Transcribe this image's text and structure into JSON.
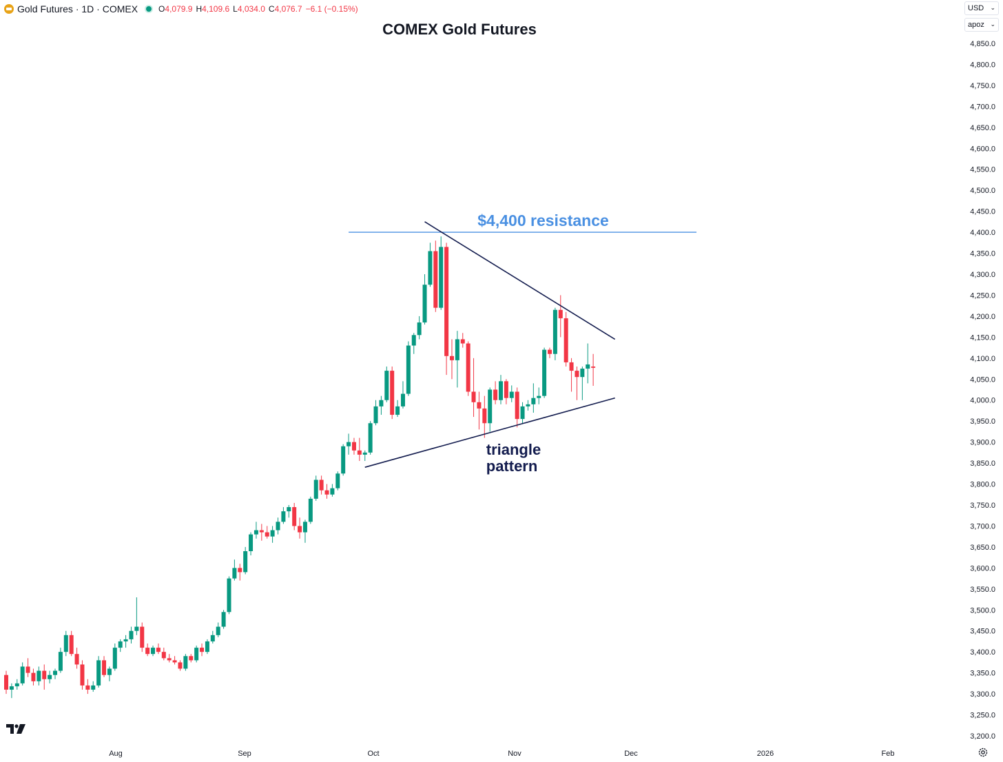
{
  "header": {
    "symbol_text": "Gold Futures · 1D · COMEX",
    "ohlc": [
      {
        "key": "O",
        "value": "4,079.9"
      },
      {
        "key": "H",
        "value": "4,109.6"
      },
      {
        "key": "L",
        "value": "4,034.0"
      },
      {
        "key": "C",
        "value": "4,076.7"
      }
    ],
    "change": "−6.1 (−0.15%)"
  },
  "controls": {
    "currency": "USD",
    "unit": "apoz"
  },
  "icons": {
    "symbol": "gold-bar-icon",
    "status": "market-dot-icon",
    "brand": "tradingview-logo-icon",
    "settings": "gear-icon"
  },
  "colors": {
    "up": "#089981",
    "down": "#f23645",
    "resistance": "#4a90e2",
    "triangle": "#131c4e"
  },
  "chart_data": {
    "type": "candlestick",
    "title": "COMEX Gold Futures",
    "xlabel": "",
    "ylabel": "",
    "ylim": [
      3200,
      4850
    ],
    "yticks": [
      "3,200.0",
      "3,250.0",
      "3,300.0",
      "3,350.0",
      "3,400.0",
      "3,450.0",
      "3,500.0",
      "3,550.0",
      "3,600.0",
      "3,650.0",
      "3,700.0",
      "3,750.0",
      "3,800.0",
      "3,850.0",
      "3,900.0",
      "3,950.0",
      "4,000.0",
      "4,050.0",
      "4,100.0",
      "4,150.0",
      "4,200.0",
      "4,250.0",
      "4,300.0",
      "4,350.0",
      "4,400.0",
      "4,450.0",
      "4,500.0",
      "4,550.0",
      "4,600.0",
      "4,650.0",
      "4,700.0",
      "4,750.0",
      "4,800.0",
      "4,850.0"
    ],
    "xticks": [
      "Aug",
      "Sep",
      "Oct",
      "Nov",
      "Dec",
      "2026",
      "Feb"
    ],
    "grid": false,
    "candles": [
      {
        "o": 3345,
        "h": 3355,
        "l": 3300,
        "c": 3310
      },
      {
        "o": 3310,
        "h": 3325,
        "l": 3290,
        "c": 3318
      },
      {
        "o": 3318,
        "h": 3335,
        "l": 3310,
        "c": 3325
      },
      {
        "o": 3325,
        "h": 3375,
        "l": 3320,
        "c": 3365
      },
      {
        "o": 3365,
        "h": 3385,
        "l": 3340,
        "c": 3350
      },
      {
        "o": 3350,
        "h": 3360,
        "l": 3320,
        "c": 3330
      },
      {
        "o": 3330,
        "h": 3365,
        "l": 3320,
        "c": 3355
      },
      {
        "o": 3355,
        "h": 3370,
        "l": 3310,
        "c": 3335
      },
      {
        "o": 3335,
        "h": 3355,
        "l": 3325,
        "c": 3345
      },
      {
        "o": 3345,
        "h": 3360,
        "l": 3335,
        "c": 3355
      },
      {
        "o": 3355,
        "h": 3410,
        "l": 3350,
        "c": 3400
      },
      {
        "o": 3400,
        "h": 3450,
        "l": 3390,
        "c": 3440
      },
      {
        "o": 3440,
        "h": 3450,
        "l": 3390,
        "c": 3395
      },
      {
        "o": 3395,
        "h": 3410,
        "l": 3360,
        "c": 3370
      },
      {
        "o": 3370,
        "h": 3380,
        "l": 3310,
        "c": 3320
      },
      {
        "o": 3320,
        "h": 3335,
        "l": 3300,
        "c": 3310
      },
      {
        "o": 3310,
        "h": 3330,
        "l": 3305,
        "c": 3320
      },
      {
        "o": 3320,
        "h": 3390,
        "l": 3315,
        "c": 3380
      },
      {
        "o": 3380,
        "h": 3390,
        "l": 3340,
        "c": 3345
      },
      {
        "o": 3345,
        "h": 3365,
        "l": 3330,
        "c": 3360
      },
      {
        "o": 3360,
        "h": 3420,
        "l": 3355,
        "c": 3410
      },
      {
        "o": 3410,
        "h": 3430,
        "l": 3400,
        "c": 3425
      },
      {
        "o": 3425,
        "h": 3440,
        "l": 3410,
        "c": 3430
      },
      {
        "o": 3430,
        "h": 3460,
        "l": 3420,
        "c": 3450
      },
      {
        "o": 3450,
        "h": 3530,
        "l": 3440,
        "c": 3460
      },
      {
        "o": 3460,
        "h": 3470,
        "l": 3400,
        "c": 3410
      },
      {
        "o": 3410,
        "h": 3420,
        "l": 3390,
        "c": 3395
      },
      {
        "o": 3395,
        "h": 3415,
        "l": 3390,
        "c": 3410
      },
      {
        "o": 3410,
        "h": 3420,
        "l": 3395,
        "c": 3400
      },
      {
        "o": 3400,
        "h": 3410,
        "l": 3380,
        "c": 3385
      },
      {
        "o": 3385,
        "h": 3395,
        "l": 3375,
        "c": 3380
      },
      {
        "o": 3380,
        "h": 3390,
        "l": 3370,
        "c": 3375
      },
      {
        "o": 3375,
        "h": 3380,
        "l": 3355,
        "c": 3360
      },
      {
        "o": 3360,
        "h": 3395,
        "l": 3355,
        "c": 3390
      },
      {
        "o": 3390,
        "h": 3395,
        "l": 3375,
        "c": 3380
      },
      {
        "o": 3380,
        "h": 3415,
        "l": 3375,
        "c": 3410
      },
      {
        "o": 3410,
        "h": 3420,
        "l": 3390,
        "c": 3400
      },
      {
        "o": 3400,
        "h": 3430,
        "l": 3395,
        "c": 3425
      },
      {
        "o": 3425,
        "h": 3450,
        "l": 3420,
        "c": 3440
      },
      {
        "o": 3440,
        "h": 3470,
        "l": 3435,
        "c": 3460
      },
      {
        "o": 3460,
        "h": 3500,
        "l": 3455,
        "c": 3495
      },
      {
        "o": 3495,
        "h": 3580,
        "l": 3490,
        "c": 3575
      },
      {
        "o": 3575,
        "h": 3620,
        "l": 3570,
        "c": 3600
      },
      {
        "o": 3600,
        "h": 3610,
        "l": 3570,
        "c": 3590
      },
      {
        "o": 3590,
        "h": 3650,
        "l": 3585,
        "c": 3640
      },
      {
        "o": 3640,
        "h": 3685,
        "l": 3630,
        "c": 3680
      },
      {
        "o": 3680,
        "h": 3710,
        "l": 3670,
        "c": 3690
      },
      {
        "o": 3690,
        "h": 3705,
        "l": 3665,
        "c": 3685
      },
      {
        "o": 3685,
        "h": 3700,
        "l": 3670,
        "c": 3675
      },
      {
        "o": 3675,
        "h": 3700,
        "l": 3660,
        "c": 3690
      },
      {
        "o": 3690,
        "h": 3720,
        "l": 3680,
        "c": 3710
      },
      {
        "o": 3710,
        "h": 3745,
        "l": 3705,
        "c": 3735
      },
      {
        "o": 3735,
        "h": 3750,
        "l": 3720,
        "c": 3745
      },
      {
        "o": 3745,
        "h": 3755,
        "l": 3690,
        "c": 3700
      },
      {
        "o": 3700,
        "h": 3720,
        "l": 3670,
        "c": 3685
      },
      {
        "o": 3685,
        "h": 3715,
        "l": 3660,
        "c": 3710
      },
      {
        "o": 3710,
        "h": 3770,
        "l": 3705,
        "c": 3765
      },
      {
        "o": 3765,
        "h": 3820,
        "l": 3760,
        "c": 3810
      },
      {
        "o": 3810,
        "h": 3820,
        "l": 3775,
        "c": 3785
      },
      {
        "o": 3785,
        "h": 3800,
        "l": 3765,
        "c": 3775
      },
      {
        "o": 3775,
        "h": 3800,
        "l": 3770,
        "c": 3790
      },
      {
        "o": 3790,
        "h": 3830,
        "l": 3785,
        "c": 3825
      },
      {
        "o": 3825,
        "h": 3895,
        "l": 3820,
        "c": 3890
      },
      {
        "o": 3890,
        "h": 3920,
        "l": 3870,
        "c": 3900
      },
      {
        "o": 3900,
        "h": 3910,
        "l": 3870,
        "c": 3880
      },
      {
        "o": 3880,
        "h": 3910,
        "l": 3855,
        "c": 3870
      },
      {
        "o": 3870,
        "h": 3880,
        "l": 3855,
        "c": 3875
      },
      {
        "o": 3875,
        "h": 3950,
        "l": 3870,
        "c": 3945
      },
      {
        "o": 3945,
        "h": 4000,
        "l": 3940,
        "c": 3985
      },
      {
        "o": 3985,
        "h": 4010,
        "l": 3965,
        "c": 4000
      },
      {
        "o": 4000,
        "h": 4080,
        "l": 3995,
        "c": 4070
      },
      {
        "o": 4070,
        "h": 4080,
        "l": 3955,
        "c": 3965
      },
      {
        "o": 3965,
        "h": 4000,
        "l": 3960,
        "c": 3985
      },
      {
        "o": 3985,
        "h": 4045,
        "l": 3980,
        "c": 4015
      },
      {
        "o": 4015,
        "h": 4140,
        "l": 4010,
        "c": 4130
      },
      {
        "o": 4130,
        "h": 4160,
        "l": 4110,
        "c": 4155
      },
      {
        "o": 4155,
        "h": 4200,
        "l": 4145,
        "c": 4185
      },
      {
        "o": 4185,
        "h": 4300,
        "l": 4180,
        "c": 4275
      },
      {
        "o": 4275,
        "h": 4375,
        "l": 4270,
        "c": 4355
      },
      {
        "o": 4355,
        "h": 4380,
        "l": 4210,
        "c": 4220
      },
      {
        "o": 4220,
        "h": 4390,
        "l": 4215,
        "c": 4365
      },
      {
        "o": 4365,
        "h": 4375,
        "l": 4060,
        "c": 4105
      },
      {
        "o": 4105,
        "h": 4145,
        "l": 4050,
        "c": 4095
      },
      {
        "o": 4095,
        "h": 4165,
        "l": 4030,
        "c": 4145
      },
      {
        "o": 4145,
        "h": 4160,
        "l": 4125,
        "c": 4135
      },
      {
        "o": 4135,
        "h": 4140,
        "l": 4010,
        "c": 4020
      },
      {
        "o": 4020,
        "h": 4100,
        "l": 3960,
        "c": 3995
      },
      {
        "o": 3995,
        "h": 4020,
        "l": 3930,
        "c": 3980
      },
      {
        "o": 3980,
        "h": 4010,
        "l": 3910,
        "c": 3945
      },
      {
        "o": 3945,
        "h": 4030,
        "l": 3925,
        "c": 4025
      },
      {
        "o": 4025,
        "h": 4045,
        "l": 3990,
        "c": 4000
      },
      {
        "o": 4000,
        "h": 4060,
        "l": 3990,
        "c": 4045
      },
      {
        "o": 4045,
        "h": 4050,
        "l": 3990,
        "c": 4005
      },
      {
        "o": 4005,
        "h": 4035,
        "l": 3995,
        "c": 4020
      },
      {
        "o": 4020,
        "h": 4030,
        "l": 3935,
        "c": 3955
      },
      {
        "o": 3955,
        "h": 3995,
        "l": 3945,
        "c": 3985
      },
      {
        "o": 3985,
        "h": 4000,
        "l": 3975,
        "c": 3990
      },
      {
        "o": 3990,
        "h": 4040,
        "l": 3970,
        "c": 4005
      },
      {
        "o": 4005,
        "h": 4030,
        "l": 3990,
        "c": 4010
      },
      {
        "o": 4010,
        "h": 4125,
        "l": 4005,
        "c": 4120
      },
      {
        "o": 4120,
        "h": 4125,
        "l": 4100,
        "c": 4110
      },
      {
        "o": 4110,
        "h": 4220,
        "l": 4095,
        "c": 4215
      },
      {
        "o": 4215,
        "h": 4250,
        "l": 4150,
        "c": 4195
      },
      {
        "o": 4195,
        "h": 4210,
        "l": 4080,
        "c": 4090
      },
      {
        "o": 4090,
        "h": 4100,
        "l": 4020,
        "c": 4070
      },
      {
        "o": 4070,
        "h": 4080,
        "l": 4000,
        "c": 4055
      },
      {
        "o": 4055,
        "h": 4080,
        "l": 4000,
        "c": 4075
      },
      {
        "o": 4075,
        "h": 4135,
        "l": 4040,
        "c": 4085
      },
      {
        "o": 4080,
        "h": 4110,
        "l": 4034,
        "c": 4077
      }
    ],
    "annotations": [
      {
        "type": "hline",
        "label": "$4,400 resistance",
        "y": 4400,
        "from_index": 63,
        "to_index": 127
      },
      {
        "type": "trendline",
        "name": "upper",
        "from": {
          "index": 77,
          "y": 4425
        },
        "to": {
          "index": 112,
          "y": 4145
        }
      },
      {
        "type": "trendline",
        "name": "lower",
        "from": {
          "index": 66,
          "y": 3840
        },
        "to": {
          "index": 112,
          "y": 4005
        }
      },
      {
        "type": "text",
        "label": "triangle pattern",
        "index": 84,
        "y": 3850
      }
    ]
  }
}
